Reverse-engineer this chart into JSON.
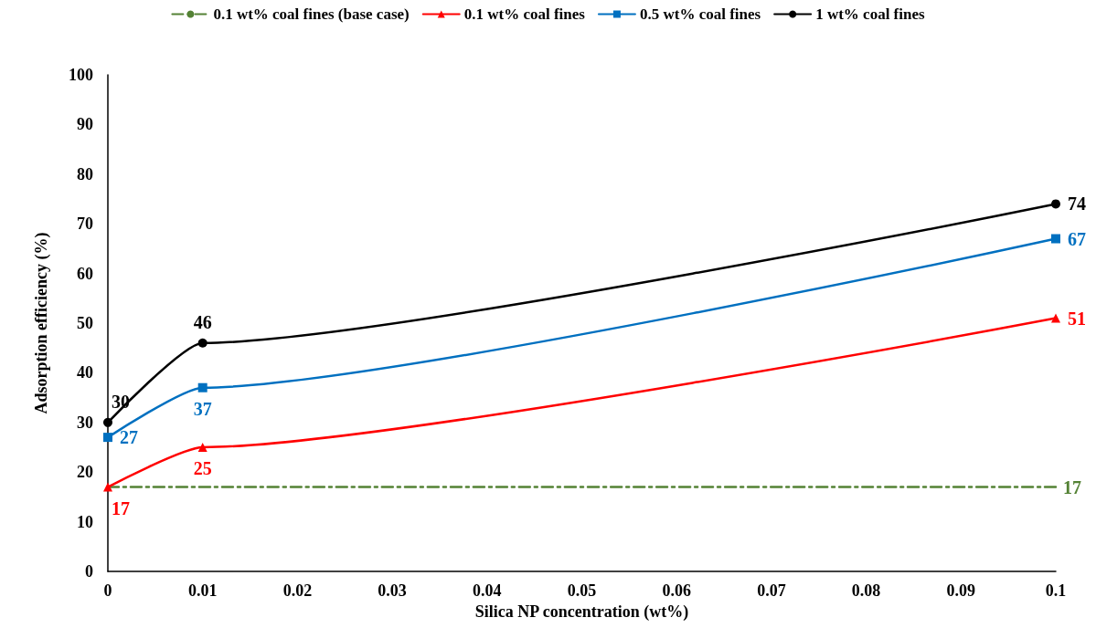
{
  "chart_data": {
    "type": "line",
    "xlabel": "Silica NP concentration (wt%)",
    "ylabel": "Adsorption efficiency (%)",
    "xlim": [
      0,
      0.1
    ],
    "xticks": [
      0,
      0.01,
      0.02,
      0.03,
      0.04,
      0.05,
      0.06,
      0.07,
      0.08,
      0.09,
      0.1
    ],
    "ylim": [
      0,
      100
    ],
    "yticks": [
      0,
      10,
      20,
      30,
      40,
      50,
      60,
      70,
      80,
      90,
      100
    ],
    "grid": false,
    "legend": "top",
    "series": [
      {
        "name": "0.1 wt% coal fines (base case)",
        "color": "#548235",
        "x": [
          0,
          0.1
        ],
        "values": [
          17,
          17
        ],
        "value_labels": [
          null,
          "17"
        ],
        "marker": "none",
        "line_style": "dashed"
      },
      {
        "name": "0.1 wt% coal fines",
        "color": "#ff0000",
        "x": [
          0,
          0.01,
          0.1
        ],
        "values": [
          17,
          25,
          51
        ],
        "value_labels": [
          "17",
          "25",
          "51"
        ],
        "marker": "triangle",
        "line_style": "solid"
      },
      {
        "name": "0.5 wt% coal fines",
        "color": "#0070c0",
        "x": [
          0,
          0.01,
          0.1
        ],
        "values": [
          27,
          37,
          67
        ],
        "value_labels": [
          "27",
          "37",
          "67"
        ],
        "marker": "square",
        "line_style": "solid"
      },
      {
        "name": "1 wt% coal fines",
        "color": "#000000",
        "x": [
          0,
          0.01,
          0.1
        ],
        "values": [
          30,
          46,
          74
        ],
        "value_labels": [
          "30",
          "46",
          "74"
        ],
        "marker": "circle",
        "line_style": "solid"
      }
    ]
  }
}
